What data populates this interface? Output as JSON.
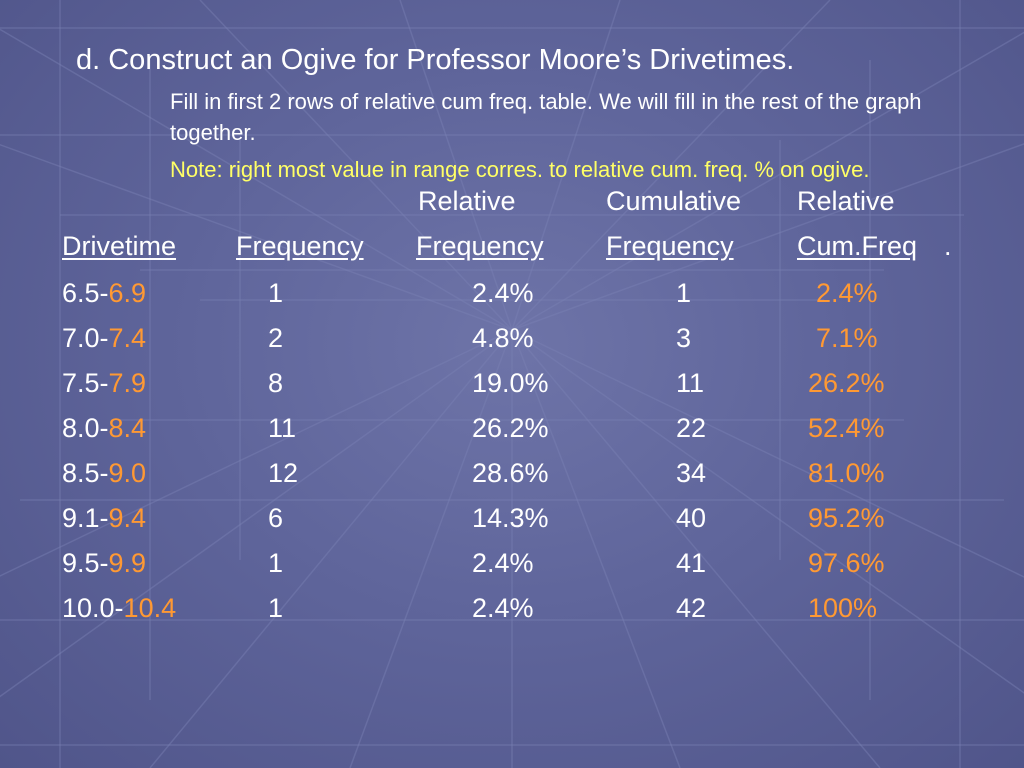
{
  "title": "d. Construct an Ogive for Professor Moore’s Drivetimes.",
  "instructions": "Fill in first 2 rows of relative cum freq. table. We will fill in the rest of the graph together.",
  "note": "Note: right most value in range corres. to relative cum. freq. % on ogive.",
  "header_top": {
    "rel_freq": "Relative",
    "cum_freq": "Cumulative",
    "rel_cum": "Relative"
  },
  "header_bottom": {
    "drivetime": "Drivetime",
    "frequency": "Frequency",
    "rel_freq": "Frequency",
    "cum_freq": "Frequency",
    "rel_cum": "Cum.Freq",
    "period": "."
  },
  "rows": [
    {
      "lower": "6.5-",
      "upper": "6.9",
      "freq": "1",
      "rel": "2.4%",
      "cum": "1",
      "relcum": "2.4%"
    },
    {
      "lower": "7.0-",
      "upper": "7.4",
      "freq": "2",
      "rel": "4.8%",
      "cum": "3",
      "relcum": "7.1%"
    },
    {
      "lower": "7.5-",
      "upper": "7.9",
      "freq": "8",
      "rel": "19.0%",
      "cum": "11",
      "relcum": "26.2%"
    },
    {
      "lower": "8.0-",
      "upper": "8.4",
      "freq": "11",
      "rel": "26.2%",
      "cum": "22",
      "relcum": "52.4%"
    },
    {
      "lower": "8.5-",
      "upper": "9.0",
      "freq": "12",
      "rel": "28.6%",
      "cum": "34",
      "relcum": "81.0%"
    },
    {
      "lower": "9.1-",
      "upper": "9.4",
      "freq": "6",
      "rel": "14.3%",
      "cum": "40",
      "relcum": "95.2%"
    },
    {
      "lower": "9.5-",
      "upper": "9.9",
      "freq": "1",
      "rel": "2.4%",
      "cum": "41",
      "relcum": "97.6%"
    },
    {
      "lower": "10.0-",
      "upper": "10.4",
      "freq": "1",
      "rel": "2.4%",
      "cum": "42",
      "relcum": "100%"
    }
  ],
  "colors": {
    "background": "#5f659b",
    "text": "#ffffff",
    "highlight": "#ff9933",
    "note": "#ffff66"
  }
}
